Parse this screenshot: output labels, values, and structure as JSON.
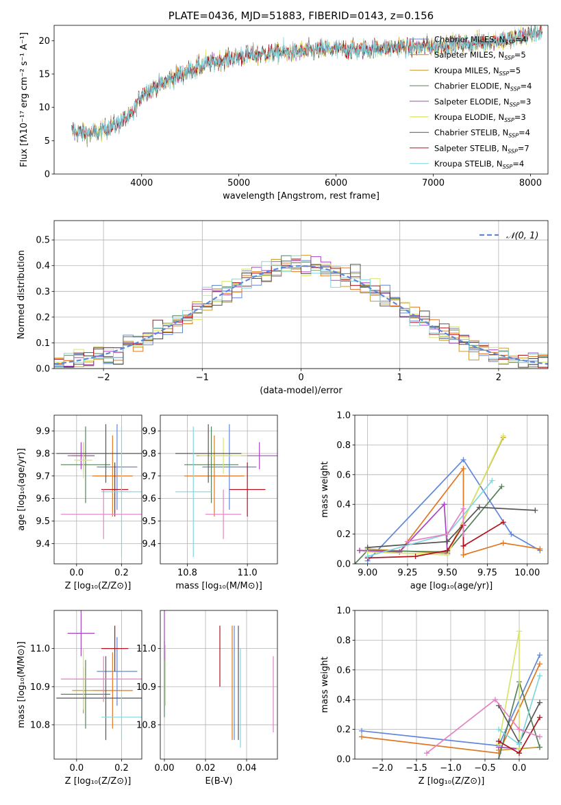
{
  "chart_data": [
    {
      "id": "spectrum",
      "type": "line",
      "title": "PLATE=0436, MJD=51883, FIBERID=0143, z=0.156",
      "xlabel": "wavelength [Angstrom, rest frame]",
      "ylabel": "Flux [fλ10⁻¹⁷ erg cm⁻² s⁻¹ A⁻¹]",
      "xlim": [
        3100,
        8180
      ],
      "ylim": [
        0,
        22.3
      ],
      "xticks": [
        4000,
        5000,
        6000,
        7000,
        8000
      ],
      "yticks": [
        0,
        5,
        10,
        15,
        20
      ],
      "grid": false,
      "legend_position": "top-right",
      "continuum": [
        [
          3300,
          6.3
        ],
        [
          3500,
          6.0
        ],
        [
          3700,
          7.2
        ],
        [
          3900,
          8.8
        ],
        [
          4000,
          12.0
        ],
        [
          4200,
          13.5
        ],
        [
          4400,
          15.0
        ],
        [
          4600,
          16.2
        ],
        [
          4800,
          17.0
        ],
        [
          5000,
          17.6
        ],
        [
          5200,
          18.0
        ],
        [
          5400,
          18.3
        ],
        [
          5600,
          18.3
        ],
        [
          5800,
          18.6
        ],
        [
          6000,
          18.8
        ],
        [
          6200,
          18.6
        ],
        [
          6400,
          18.8
        ],
        [
          6600,
          19.0
        ],
        [
          6800,
          19.0
        ],
        [
          7000,
          19.2
        ],
        [
          7200,
          19.5
        ],
        [
          7400,
          19.6
        ],
        [
          7600,
          20.0
        ],
        [
          7800,
          20.2
        ],
        [
          8000,
          21.0
        ],
        [
          8100,
          21.5
        ]
      ],
      "series": [
        {
          "name": "Chabrier MILES, N_SSP=4",
          "color": "#5f86d9"
        },
        {
          "name": "Salpeter MILES, N_SSP=5",
          "color": "#e0761f"
        },
        {
          "name": "Kroupa MILES, N_SSP=5",
          "color": "#c99a2e"
        },
        {
          "name": "Chabrier ELODIE, N_SSP=4",
          "color": "#55805a"
        },
        {
          "name": "Salpeter ELODIE, N_SSP=3",
          "color": "#a843c4"
        },
        {
          "name": "Kroupa ELODIE, N_SSP=3",
          "color": "#d8e46a"
        },
        {
          "name": "Chabrier STELIB, N_SSP=4",
          "color": "#555555"
        },
        {
          "name": "Salpeter STELIB, N_SSP=7",
          "color": "#b0121c"
        },
        {
          "name": "Kroupa STELIB, N_SSP=4",
          "color": "#7fd6df"
        }
      ]
    },
    {
      "id": "residuals",
      "type": "histogram",
      "xlabel": "(data-model)/error",
      "ylabel": "Normed distribution",
      "xlim": [
        -2.5,
        2.5
      ],
      "ylim": [
        0,
        0.575
      ],
      "xticks": [
        -2,
        -1,
        0,
        1,
        2
      ],
      "yticks": [
        0.0,
        0.1,
        0.2,
        0.3,
        0.4,
        0.5
      ],
      "grid": true,
      "legend_position": "top-right",
      "legend": "𝒩(0, 1)",
      "bin_width": 0.1,
      "reference_curve": "normal pdf, mean 0, sigma 1",
      "reference_color": "#5f86d9"
    },
    {
      "id": "age-vs-Z",
      "type": "errorbar",
      "xlabel": "Z [log₁₀(Z/Z⊙)]",
      "ylabel": "age  [log₁₀(age/yr)]",
      "xlim": [
        -0.1,
        0.29
      ],
      "ylim": [
        9.31,
        9.97
      ],
      "xticks": [
        0.0,
        0.2
      ],
      "yticks": [
        9.4,
        9.5,
        9.6,
        9.7,
        9.8,
        9.9
      ],
      "grid": true,
      "points": [
        {
          "x": 0.18,
          "y": 9.74,
          "xerr": 0.09,
          "yerr": 0.19,
          "color": "#5f86d9"
        },
        {
          "x": 0.16,
          "y": 9.7,
          "xerr": 0.09,
          "yerr": 0.18,
          "color": "#e0761f"
        },
        {
          "x": 0.03,
          "y": 9.79,
          "xerr": 0.05,
          "yerr": 0.06,
          "color": "#c99a2e"
        },
        {
          "x": 0.04,
          "y": 9.75,
          "xerr": 0.11,
          "yerr": 0.17,
          "color": "#55805a"
        },
        {
          "x": 0.02,
          "y": 9.79,
          "xerr": 0.06,
          "yerr": 0.06,
          "color": "#a843c4"
        },
        {
          "x": 0.03,
          "y": 9.77,
          "xerr": 0.04,
          "yerr": 0.08,
          "color": "#d8e46a"
        },
        {
          "x": 0.13,
          "y": 9.8,
          "xerr": 0.22,
          "yerr": 0.13,
          "color": "#555555"
        },
        {
          "x": 0.17,
          "y": 9.64,
          "xerr": 0.06,
          "yerr": 0.12,
          "color": "#b0121c"
        },
        {
          "x": 0.2,
          "y": 9.63,
          "xerr": 0.09,
          "yerr": 0.29,
          "color": "#7fd6df"
        },
        {
          "x": 0.12,
          "y": 9.53,
          "xerr": 0.19,
          "yerr": 0.11,
          "color": "#e382c3"
        }
      ]
    },
    {
      "id": "age-vs-mass",
      "type": "errorbar",
      "xlabel": "mass [log₁₀(M/M⊙)]",
      "ylabel": "",
      "xlim": [
        10.71,
        11.1
      ],
      "ylim": [
        9.31,
        9.97
      ],
      "xticks": [
        10.8,
        11.0
      ],
      "yticks": [
        9.4,
        9.5,
        9.6,
        9.7,
        9.8,
        9.9
      ],
      "grid": true,
      "points": [
        {
          "x": 10.94,
          "y": 9.74,
          "xerr": 0.09,
          "yerr": 0.19,
          "color": "#5f86d9"
        },
        {
          "x": 10.89,
          "y": 9.7,
          "xerr": 0.1,
          "yerr": 0.18,
          "color": "#e0761f"
        },
        {
          "x": 10.89,
          "y": 9.79,
          "xerr": 0.06,
          "yerr": 0.06,
          "color": "#c99a2e"
        },
        {
          "x": 10.88,
          "y": 9.75,
          "xerr": 0.09,
          "yerr": 0.17,
          "color": "#55805a"
        },
        {
          "x": 11.04,
          "y": 9.79,
          "xerr": 0.06,
          "yerr": 0.06,
          "color": "#a843c4"
        },
        {
          "x": 10.92,
          "y": 9.79,
          "xerr": 0.08,
          "yerr": 0.08,
          "color": "#d8e46a"
        },
        {
          "x": 10.87,
          "y": 9.8,
          "xerr": 0.11,
          "yerr": 0.13,
          "color": "#555555"
        },
        {
          "x": 11.0,
          "y": 9.64,
          "xerr": 0.06,
          "yerr": 0.12,
          "color": "#b0121c"
        },
        {
          "x": 10.82,
          "y": 9.63,
          "xerr": 0.06,
          "yerr": 0.29,
          "color": "#7fd6df"
        },
        {
          "x": 10.92,
          "y": 9.53,
          "xerr": 0.06,
          "yerr": 0.11,
          "color": "#e382c3"
        }
      ]
    },
    {
      "id": "mass-weight-vs-age",
      "type": "line",
      "xlabel": "age  [log₁₀(age/yr)]",
      "ylabel": "mass weight",
      "xlim": [
        8.92,
        10.13
      ],
      "ylim": [
        0,
        1.0
      ],
      "xticks": [
        9.0,
        9.25,
        9.5,
        9.75,
        10.0
      ],
      "yticks": [
        0.0,
        0.2,
        0.4,
        0.6,
        0.8,
        1.0
      ],
      "grid": true,
      "series": [
        {
          "color": "#5f86d9",
          "points": [
            [
              9.0,
              0.02
            ],
            [
              9.6,
              0.7
            ],
            [
              9.9,
              0.2
            ],
            [
              10.08,
              0.09
            ]
          ]
        },
        {
          "color": "#e0761f",
          "points": [
            [
              8.95,
              0.09
            ],
            [
              9.2,
              0.08
            ],
            [
              9.6,
              0.64
            ],
            [
              9.6,
              0.06
            ],
            [
              9.85,
              0.14
            ],
            [
              10.08,
              0.1
            ]
          ]
        },
        {
          "color": "#c99a2e",
          "points": [
            [
              9.0,
              0.1
            ],
            [
              9.5,
              0.07
            ],
            [
              9.85,
              0.85
            ]
          ]
        },
        {
          "color": "#55805a",
          "points": [
            [
              8.92,
              0.0
            ],
            [
              9.0,
              0.09
            ],
            [
              9.5,
              0.08
            ],
            [
              9.84,
              0.52
            ]
          ]
        },
        {
          "color": "#a843c4",
          "points": [
            [
              8.95,
              0.09
            ],
            [
              9.2,
              0.08
            ],
            [
              9.48,
              0.4
            ],
            [
              9.5,
              0.07
            ]
          ]
        },
        {
          "color": "#d8e46a",
          "points": [
            [
              9.0,
              0.08
            ],
            [
              9.5,
              0.06
            ],
            [
              9.85,
              0.86
            ]
          ]
        },
        {
          "color": "#555555",
          "points": [
            [
              9.0,
              0.11
            ],
            [
              9.5,
              0.15
            ],
            [
              9.7,
              0.38
            ],
            [
              10.05,
              0.36
            ]
          ]
        },
        {
          "color": "#b0121c",
          "points": [
            [
              9.0,
              0.04
            ],
            [
              9.3,
              0.05
            ],
            [
              9.5,
              0.09
            ],
            [
              9.6,
              0.26
            ],
            [
              9.6,
              0.12
            ],
            [
              9.85,
              0.28
            ]
          ]
        },
        {
          "color": "#7fd6df",
          "points": [
            [
              9.0,
              0.05
            ],
            [
              9.5,
              0.2
            ],
            [
              9.78,
              0.56
            ]
          ]
        },
        {
          "color": "#e382c3",
          "points": [
            [
              9.25,
              0.15
            ],
            [
              9.5,
              0.2
            ],
            [
              9.6,
              0.37
            ],
            [
              9.6,
              0.2
            ]
          ]
        }
      ]
    },
    {
      "id": "mass-vs-Z",
      "type": "errorbar",
      "xlabel": "Z [log₁₀(Z/Z⊙)]",
      "ylabel": "mass [log₁₀(M/M⊙)]",
      "xlim": [
        -0.1,
        0.29
      ],
      "ylim": [
        10.71,
        11.1
      ],
      "xticks": [
        0.0,
        0.2
      ],
      "yticks": [
        10.8,
        10.9,
        11.0
      ],
      "grid": true,
      "points": [
        {
          "x": 0.18,
          "y": 10.94,
          "xerr": 0.09,
          "yerr": 0.09,
          "color": "#5f86d9"
        },
        {
          "x": 0.16,
          "y": 10.89,
          "xerr": 0.09,
          "yerr": 0.1,
          "color": "#e0761f"
        },
        {
          "x": 0.03,
          "y": 10.89,
          "xerr": 0.05,
          "yerr": 0.06,
          "color": "#c99a2e"
        },
        {
          "x": 0.04,
          "y": 10.88,
          "xerr": 0.11,
          "yerr": 0.09,
          "color": "#55805a"
        },
        {
          "x": 0.02,
          "y": 11.04,
          "xerr": 0.06,
          "yerr": 0.06,
          "color": "#a843c4"
        },
        {
          "x": 0.03,
          "y": 10.92,
          "xerr": 0.04,
          "yerr": 0.08,
          "color": "#d8e46a"
        },
        {
          "x": 0.13,
          "y": 10.87,
          "xerr": 0.22,
          "yerr": 0.11,
          "color": "#555555"
        },
        {
          "x": 0.17,
          "y": 11.0,
          "xerr": 0.06,
          "yerr": 0.06,
          "color": "#b0121c"
        },
        {
          "x": 0.2,
          "y": 10.82,
          "xerr": 0.09,
          "yerr": 0.06,
          "color": "#7fd6df"
        },
        {
          "x": 0.12,
          "y": 10.92,
          "xerr": 0.19,
          "yerr": 0.06,
          "color": "#e382c3"
        }
      ]
    },
    {
      "id": "mass-vs-ebv",
      "type": "errorbar",
      "xlabel": "E(B-V)",
      "ylabel": "",
      "xlim": [
        -0.002,
        0.055
      ],
      "ylim": [
        10.71,
        11.1
      ],
      "xticks": [
        0.0,
        0.02,
        0.04
      ],
      "xtick_labels": [
        "0.00",
        "0.02",
        "0.04"
      ],
      "yticks": [
        10.8,
        10.9,
        11.0
      ],
      "grid": true,
      "points": [
        {
          "x": 0.034,
          "y": 10.91,
          "xerr": 0,
          "yerr": 0.15,
          "color": "#5f86d9"
        },
        {
          "x": 0.033,
          "y": 10.91,
          "xerr": 0,
          "yerr": 0.15,
          "color": "#e0761f"
        },
        {
          "x": 0.0,
          "y": 10.92,
          "xerr": 0,
          "yerr": 0.1,
          "color": "#55805a"
        },
        {
          "x": 0.0,
          "y": 11.04,
          "xerr": 0,
          "yerr": 0.07,
          "color": "#a843c4"
        },
        {
          "x": 0.0005,
          "y": 10.93,
          "xerr": 0,
          "yerr": 0.08,
          "color": "#d8e46a"
        },
        {
          "x": 0.036,
          "y": 10.91,
          "xerr": 0,
          "yerr": 0.15,
          "color": "#555555"
        },
        {
          "x": 0.027,
          "y": 10.98,
          "xerr": 0,
          "yerr": 0.08,
          "color": "#b0121c"
        },
        {
          "x": 0.037,
          "y": 10.87,
          "xerr": 0,
          "yerr": 0.13,
          "color": "#7fd6df"
        },
        {
          "x": 0.053,
          "y": 10.88,
          "xerr": 0,
          "yerr": 0.1,
          "color": "#e382c3"
        }
      ]
    },
    {
      "id": "mass-weight-vs-Z",
      "type": "line",
      "xlabel": "Z [log₁₀(Z/Z⊙)]",
      "ylabel": "mass weight",
      "xlim": [
        -2.4,
        0.42
      ],
      "ylim": [
        0,
        1.0
      ],
      "xticks": [
        -2.0,
        -1.5,
        -1.0,
        -0.5,
        0.0
      ],
      "yticks": [
        0.0,
        0.2,
        0.4,
        0.6,
        0.8,
        1.0
      ],
      "grid": true,
      "series": [
        {
          "color": "#5f86d9",
          "points": [
            [
              -2.3,
              0.19
            ],
            [
              -0.3,
              0.09
            ],
            [
              0.3,
              0.7
            ]
          ]
        },
        {
          "color": "#e0761f",
          "points": [
            [
              -2.3,
              0.15
            ],
            [
              -0.3,
              0.04
            ],
            [
              0.3,
              0.64
            ]
          ]
        },
        {
          "color": "#c99a2e",
          "points": [
            [
              -0.3,
              0.06
            ],
            [
              0.0,
              0.07
            ],
            [
              0.3,
              0.08
            ]
          ]
        },
        {
          "color": "#55805a",
          "points": [
            [
              -0.3,
              0.0
            ],
            [
              0.0,
              0.52
            ],
            [
              0.3,
              0.08
            ]
          ]
        },
        {
          "color": "#a843c4",
          "points": [
            [
              -0.3,
              0.08
            ],
            [
              0.0,
              0.07
            ]
          ]
        },
        {
          "color": "#d8e46a",
          "points": [
            [
              -0.3,
              0.1
            ],
            [
              0.0,
              0.86
            ],
            [
              0.0,
              0.07
            ]
          ]
        },
        {
          "color": "#555555",
          "points": [
            [
              -0.3,
              0.36
            ],
            [
              0.0,
              0.11
            ],
            [
              0.3,
              0.38
            ]
          ]
        },
        {
          "color": "#b0121c",
          "points": [
            [
              -0.3,
              0.12
            ],
            [
              0.0,
              0.04
            ],
            [
              0.3,
              0.28
            ]
          ]
        },
        {
          "color": "#7fd6df",
          "points": [
            [
              -0.3,
              0.2
            ],
            [
              0.0,
              0.1
            ],
            [
              0.3,
              0.56
            ]
          ]
        },
        {
          "color": "#e382c3",
          "points": [
            [
              -1.35,
              0.04
            ],
            [
              -0.35,
              0.4
            ],
            [
              0.0,
              0.2
            ],
            [
              0.3,
              0.15
            ]
          ]
        }
      ]
    }
  ]
}
